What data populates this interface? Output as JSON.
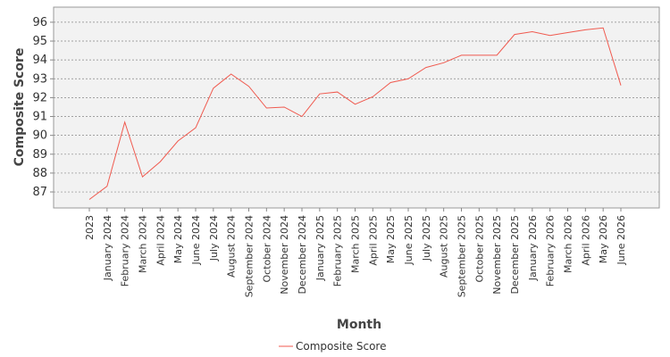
{
  "chart_data": {
    "type": "line",
    "x_label": "Month",
    "y_label": "Composite Score",
    "categories": [
      "2023",
      "January 2024",
      "February 2024",
      "March 2024",
      "April 2024",
      "May 2024",
      "June 2024",
      "July 2024",
      "August 2024",
      "September 2024",
      "October 2024",
      "November 2024",
      "December 2024",
      "January 2025",
      "February 2025",
      "March 2025",
      "April 2025",
      "May 2025",
      "June 2025",
      "July 2025",
      "August 2025",
      "September 2025",
      "October 2025",
      "November 2025",
      "December 2025",
      "January 2026",
      "February 2026",
      "March 2026",
      "April 2026",
      "May 2026",
      "June 2026"
    ],
    "series": [
      {
        "name": "Composite Score",
        "color": "#f05a4f",
        "values": [
          86.6,
          87.3,
          90.7,
          87.8,
          88.6,
          89.7,
          90.4,
          92.5,
          93.25,
          92.6,
          91.45,
          91.5,
          91.0,
          92.2,
          92.3,
          91.65,
          92.05,
          92.8,
          93.0,
          93.6,
          93.85,
          94.25,
          94.25,
          94.25,
          95.35,
          95.5,
          95.3,
          95.45,
          95.6,
          95.7,
          92.65
        ]
      }
    ],
    "ylim": [
      86.15,
      96.8
    ],
    "yticks": [
      87,
      88,
      89,
      90,
      91,
      92,
      93,
      94,
      95,
      96
    ],
    "grid": true,
    "legend": "bottom"
  }
}
